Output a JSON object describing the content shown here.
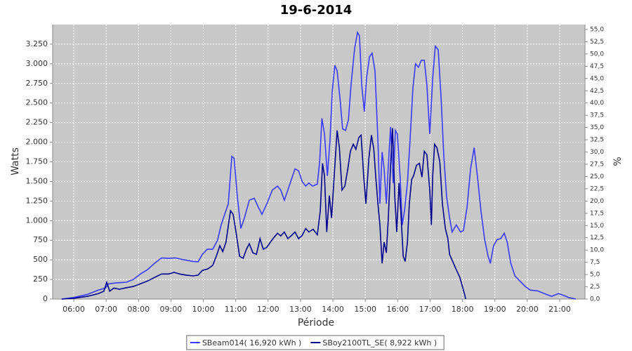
{
  "chart_data": {
    "type": "line",
    "title": "19-6-2014",
    "xlabel": "Période",
    "ylabel": "Watts",
    "y2label": "%",
    "xlim": [
      5.35,
      21.78
    ],
    "xticks": [
      {
        "value": 6,
        "label": "06:00"
      },
      {
        "value": 7,
        "label": "07:00"
      },
      {
        "value": 8,
        "label": "08:00"
      },
      {
        "value": 9,
        "label": "09:00"
      },
      {
        "value": 10,
        "label": "10:00"
      },
      {
        "value": 11,
        "label": "11:00"
      },
      {
        "value": 12,
        "label": "12:00"
      },
      {
        "value": 13,
        "label": "13:00"
      },
      {
        "value": 14,
        "label": "14:00"
      },
      {
        "value": 15,
        "label": "15:00"
      },
      {
        "value": 16,
        "label": "16:00"
      },
      {
        "value": 17,
        "label": "17:00"
      },
      {
        "value": 18,
        "label": "18:00"
      },
      {
        "value": 19,
        "label": "19:00"
      },
      {
        "value": 20,
        "label": "20:00"
      },
      {
        "value": 21,
        "label": "21:00"
      }
    ],
    "ylim": [
      0,
      3500
    ],
    "yticks": [
      0,
      250,
      500,
      750,
      {
        "value": 1000,
        "label": "1.000"
      },
      {
        "value": 1250,
        "label": "1.250"
      },
      {
        "value": 1500,
        "label": "1.500"
      },
      {
        "value": 1750,
        "label": "1.750"
      },
      {
        "value": 2000,
        "label": "2.000"
      },
      {
        "value": 2250,
        "label": "2.250"
      },
      {
        "value": 2500,
        "label": "2.500"
      },
      {
        "value": 2750,
        "label": "2.750"
      },
      {
        "value": 3000,
        "label": "3.000"
      },
      {
        "value": 3250,
        "label": "3.250"
      }
    ],
    "y2lim": [
      0,
      56
    ],
    "y2ticks": [
      {
        "value": 0,
        "label": "0,0"
      },
      {
        "value": 2.5,
        "label": "2,5"
      },
      {
        "value": 5,
        "label": "5,0"
      },
      {
        "value": 7.5,
        "label": "7,5"
      },
      {
        "value": 10,
        "label": "10,0"
      },
      {
        "value": 12.5,
        "label": "12,5"
      },
      {
        "value": 15,
        "label": "15,0"
      },
      {
        "value": 17.5,
        "label": "17,5"
      },
      {
        "value": 20,
        "label": "20,0"
      },
      {
        "value": 22.5,
        "label": "22,5"
      },
      {
        "value": 25,
        "label": "25,0"
      },
      {
        "value": 27.5,
        "label": "27,5"
      },
      {
        "value": 30,
        "label": "30,0"
      },
      {
        "value": 32.5,
        "label": "32,5"
      },
      {
        "value": 35,
        "label": "35,0"
      },
      {
        "value": 37.5,
        "label": "37,5"
      },
      {
        "value": 40,
        "label": "40,0"
      },
      {
        "value": 42.5,
        "label": "42,5"
      },
      {
        "value": 45,
        "label": "45,0"
      },
      {
        "value": 47.5,
        "label": "47,5"
      },
      {
        "value": 50,
        "label": "50,0"
      },
      {
        "value": 52.5,
        "label": "52,5"
      },
      {
        "value": 55,
        "label": "55,0"
      }
    ],
    "grid": true,
    "legend": "bottom",
    "series": [
      {
        "name": "SBeam014( 16,920 kWh )",
        "color": "#3a3aff",
        "x": [
          5.63,
          6.0,
          6.43,
          6.76,
          6.98,
          7.08,
          7.3,
          7.63,
          7.84,
          8.06,
          8.28,
          8.49,
          8.71,
          8.93,
          9.14,
          9.4,
          9.69,
          9.84,
          9.97,
          10.12,
          10.29,
          10.44,
          10.55,
          10.66,
          10.77,
          10.88,
          10.95,
          11.05,
          11.16,
          11.27,
          11.42,
          11.57,
          11.7,
          11.81,
          11.96,
          12.13,
          12.29,
          12.39,
          12.5,
          12.61,
          12.72,
          12.83,
          12.94,
          13.05,
          13.16,
          13.26,
          13.37,
          13.52,
          13.59,
          13.66,
          13.74,
          13.83,
          13.91,
          13.98,
          14.06,
          14.13,
          14.22,
          14.3,
          14.39,
          14.48,
          14.56,
          14.67,
          14.76,
          14.82,
          14.89,
          14.97,
          15.04,
          15.13,
          15.21,
          15.3,
          15.39,
          15.45,
          15.52,
          15.58,
          15.65,
          15.71,
          15.78,
          15.86,
          15.93,
          15.99,
          16.08,
          16.14,
          16.21,
          16.3,
          16.38,
          16.47,
          16.55,
          16.64,
          16.73,
          16.82,
          16.9,
          16.99,
          17.08,
          17.16,
          17.25,
          17.34,
          17.42,
          17.51,
          17.6,
          17.68,
          17.81,
          17.94,
          18.03,
          18.14,
          18.25,
          18.36,
          18.46,
          18.57,
          18.68,
          18.79,
          18.86,
          18.96,
          19.07,
          19.18,
          19.29,
          19.38,
          19.49,
          19.62,
          19.77,
          19.94,
          20.09,
          20.31,
          20.53,
          20.75,
          20.96,
          21.07,
          21.28,
          21.5
        ],
        "values": [
          0,
          20,
          60,
          115,
          140,
          195,
          205,
          215,
          250,
          320,
          375,
          455,
          525,
          520,
          525,
          500,
          480,
          475,
          570,
          635,
          635,
          750,
          945,
          1080,
          1215,
          1820,
          1795,
          1305,
          900,
          1035,
          1260,
          1285,
          1170,
          1080,
          1215,
          1390,
          1440,
          1390,
          1260,
          1390,
          1525,
          1660,
          1635,
          1500,
          1440,
          1480,
          1440,
          1465,
          1750,
          2305,
          2105,
          1570,
          2020,
          2645,
          2980,
          2910,
          2555,
          2170,
          2150,
          2285,
          2730,
          3195,
          3400,
          3355,
          2730,
          2390,
          2820,
          3090,
          3135,
          2910,
          2020,
          1215,
          1875,
          1660,
          1215,
          1705,
          2195,
          1480,
          2150,
          2105,
          1525,
          945,
          1125,
          1480,
          2020,
          2690,
          3000,
          2955,
          3045,
          3045,
          2730,
          2105,
          2820,
          3225,
          3180,
          2555,
          1840,
          1305,
          1035,
          855,
          945,
          855,
          875,
          1170,
          1660,
          1930,
          1570,
          1125,
          770,
          545,
          455,
          680,
          760,
          770,
          840,
          725,
          455,
          295,
          230,
          160,
          115,
          105,
          70,
          35,
          70,
          55,
          20,
          0
        ]
      },
      {
        "name": "SBoy2100TL_SE( 8,922 kWh )",
        "color": "#00008f",
        "x": [
          5.63,
          6.0,
          6.43,
          6.76,
          6.93,
          7.02,
          7.11,
          7.24,
          7.41,
          7.63,
          7.84,
          8.06,
          8.28,
          8.49,
          8.71,
          8.93,
          9.1,
          9.27,
          9.47,
          9.69,
          9.84,
          9.97,
          10.14,
          10.29,
          10.4,
          10.51,
          10.6,
          10.7,
          10.79,
          10.84,
          10.92,
          11.01,
          11.12,
          11.23,
          11.33,
          11.42,
          11.53,
          11.64,
          11.75,
          11.85,
          11.96,
          12.07,
          12.18,
          12.29,
          12.39,
          12.5,
          12.61,
          12.72,
          12.83,
          12.94,
          13.05,
          13.16,
          13.26,
          13.39,
          13.52,
          13.61,
          13.68,
          13.74,
          13.81,
          13.89,
          13.96,
          14.04,
          14.13,
          14.2,
          14.28,
          14.37,
          14.46,
          14.54,
          14.63,
          14.71,
          14.8,
          14.87,
          14.95,
          15.02,
          15.11,
          15.19,
          15.26,
          15.32,
          15.39,
          15.45,
          15.52,
          15.58,
          15.65,
          15.71,
          15.78,
          15.84,
          15.91,
          15.97,
          16.04,
          16.1,
          16.17,
          16.23,
          16.3,
          16.36,
          16.43,
          16.49,
          16.58,
          16.67,
          16.75,
          16.82,
          16.9,
          16.99,
          17.04,
          17.08,
          17.14,
          17.21,
          17.3,
          17.38,
          17.47,
          17.55,
          17.6,
          17.77,
          17.92,
          18.07,
          18.1
        ],
        "values": [
          0,
          10,
          35,
          70,
          100,
          215,
          100,
          140,
          125,
          145,
          160,
          195,
          230,
          275,
          320,
          320,
          340,
          320,
          305,
          295,
          305,
          365,
          385,
          430,
          545,
          680,
          605,
          725,
          990,
          1125,
          1080,
          855,
          545,
          520,
          635,
          705,
          590,
          570,
          770,
          635,
          660,
          725,
          785,
          840,
          805,
          855,
          770,
          810,
          855,
          770,
          810,
          900,
          855,
          890,
          820,
          1125,
          1730,
          1570,
          855,
          1320,
          1035,
          1570,
          2150,
          1930,
          1390,
          1440,
          1660,
          1885,
          1975,
          1910,
          2060,
          2090,
          1570,
          1215,
          1795,
          2090,
          1920,
          1570,
          1215,
          945,
          455,
          725,
          590,
          1035,
          1705,
          2180,
          1305,
          855,
          1480,
          1080,
          545,
          480,
          725,
          1215,
          1525,
          1570,
          1705,
          1730,
          1555,
          1885,
          1840,
          1390,
          945,
          1570,
          1975,
          1930,
          1750,
          1215,
          900,
          770,
          570,
          410,
          275,
          55,
          0
        ]
      }
    ]
  }
}
